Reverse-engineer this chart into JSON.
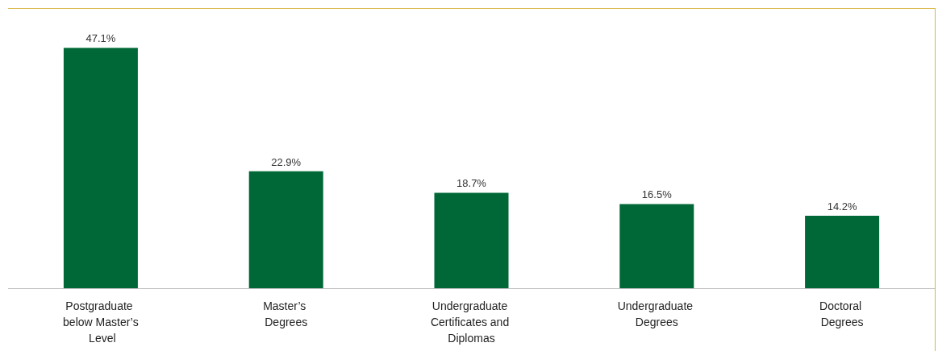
{
  "chart_data": {
    "type": "bar",
    "categories": [
      "Postgraduate below Master’s Level",
      "Master’s Degrees",
      "Undergraduate Certificates and Diplomas",
      "Undergraduate Degrees",
      "Doctoral Degrees"
    ],
    "values": [
      47.1,
      22.9,
      18.7,
      16.5,
      14.2
    ],
    "value_labels": [
      "47.1%",
      "22.9%",
      "18.7%",
      "16.5%",
      "14.2%"
    ],
    "color": "#006837"
  }
}
